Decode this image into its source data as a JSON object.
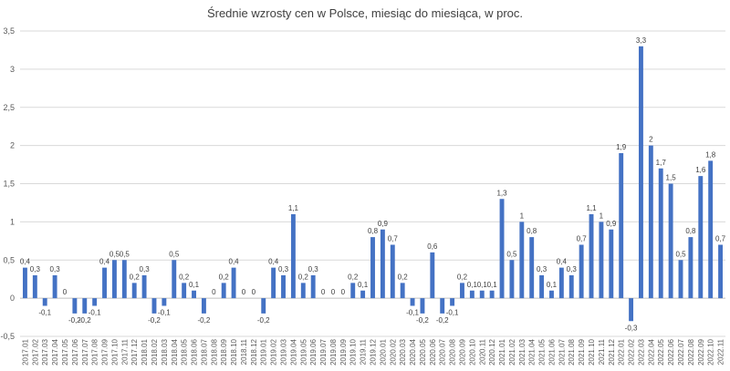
{
  "chart_data": {
    "type": "bar",
    "title": "Średnie wzrosty cen w Polsce, miesiąc do miesiąca, w proc.",
    "xlabel": "",
    "ylabel": "",
    "ylim": [
      -0.5,
      3.5
    ],
    "yticks": [
      -0.5,
      0,
      0.5,
      1,
      1.5,
      2,
      2.5,
      3,
      3.5
    ],
    "ytick_labels": [
      "-0,5",
      "0",
      "0,5",
      "1",
      "1,5",
      "2",
      "2,5",
      "3",
      "3,5"
    ],
    "grid": true,
    "legend": "none",
    "bar_color": "#4472c4",
    "categories": [
      "2017.01",
      "2017.02",
      "2017.03",
      "2017.04",
      "2017.05",
      "2017.06",
      "2017.07",
      "2017.08",
      "2017.09",
      "2017.10",
      "2017.11",
      "2017.12",
      "2018.01",
      "2018.02",
      "2018.03",
      "2018.04",
      "2018.05",
      "2018.06",
      "2018.07",
      "2018.08",
      "2018.09",
      "2018.10",
      "2018.11",
      "2018.12",
      "2019.01",
      "2019.02",
      "2019.03",
      "2019.04",
      "2019.05",
      "2019.06",
      "2019.07",
      "2019.08",
      "2019.09",
      "2019.10",
      "2019.11",
      "2019.12",
      "2020.01",
      "2020.02",
      "2020.03",
      "2020.04",
      "2020.05",
      "2020.06",
      "2020.07",
      "2020.08",
      "2020.09",
      "2020.10",
      "2020.11",
      "2020.12",
      "2021.01",
      "2021.02",
      "2021.03",
      "2021.04",
      "2021.05",
      "2021.06",
      "2021.07",
      "2021.08",
      "2021.09",
      "2021.10",
      "2021.11",
      "2021.12",
      "2022.01",
      "2022.02",
      "2022.03",
      "2022.04",
      "2022.05",
      "2022.06",
      "2022.07",
      "2022.08",
      "2022.09",
      "2022.10",
      "2022.11"
    ],
    "values": [
      0.4,
      0.3,
      -0.1,
      0.3,
      0,
      -0.2,
      -0.2,
      -0.1,
      0.4,
      0.5,
      0.5,
      0.2,
      0.3,
      -0.2,
      -0.1,
      0.5,
      0.2,
      0.1,
      -0.2,
      0,
      0.2,
      0.4,
      0,
      0,
      -0.2,
      0.4,
      0.3,
      1.1,
      0.2,
      0.3,
      0,
      0,
      0,
      0.2,
      0.1,
      0.8,
      0.9,
      0.7,
      0.2,
      -0.1,
      -0.2,
      0.6,
      -0.2,
      -0.1,
      0.2,
      0.1,
      0.1,
      0.1,
      1.3,
      0.5,
      1,
      0.8,
      0.3,
      0.1,
      0.4,
      0.3,
      0.7,
      1.1,
      1,
      0.9,
      1.9,
      -0.3,
      3.3,
      2,
      1.7,
      1.5,
      0.5,
      0.8,
      1.6,
      1.8,
      0.7
    ],
    "value_labels": [
      "0,4",
      "0,3",
      "-0,1",
      "0,3",
      "0",
      "-0,2",
      "-0,2",
      "-0,1",
      "0,4",
      "0,5",
      "0,5",
      "0,2",
      "0,3",
      "-0,2",
      "-0,1",
      "0,5",
      "0,2",
      "0,1",
      "-0,2",
      "0",
      "0,2",
      "0,4",
      "0",
      "0",
      "-0,2",
      "0,4",
      "0,3",
      "1,1",
      "0,2",
      "0,3",
      "0",
      "0",
      "0",
      "0,2",
      "0,1",
      "0,8",
      "0,9",
      "0,7",
      "0,2",
      "-0,1",
      "-0,2",
      "0,6",
      "-0,2",
      "-0,1",
      "0,2",
      "0,1",
      "0,1",
      "0,1",
      "1,3",
      "0,5",
      "1",
      "0,8",
      "0,3",
      "0,1",
      "0,4",
      "0,3",
      "0,7",
      "1,1",
      "1",
      "0,9",
      "1,9",
      "-0,3",
      "3,3",
      "2",
      "1,7",
      "1,5",
      "0,5",
      "0,8",
      "1,6",
      "1,8",
      "0,7"
    ]
  }
}
